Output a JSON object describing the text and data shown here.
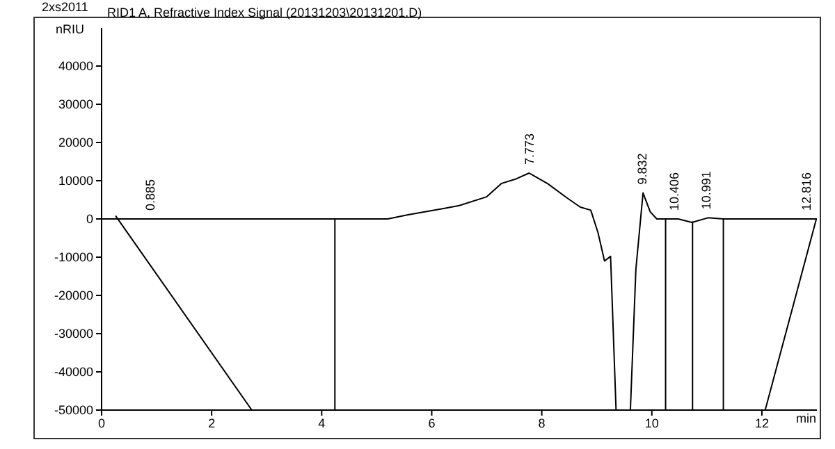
{
  "chart_data": {
    "type": "line",
    "title": "RID1 A, Refractive Index Signal (20131203\\20131201.D)",
    "xlabel": "min",
    "ylabel": "nRIU",
    "annotations": [
      "2xs2011",
      {
        "text": "0.885",
        "x": 0.885,
        "y": 0
      },
      {
        "text": "7.773",
        "x": 7.773,
        "y": 12000
      },
      {
        "text": "9.832",
        "x": 9.832,
        "y": 6800
      },
      {
        "text": "10.406",
        "x": 10.406,
        "y": 0
      },
      {
        "text": "10.991",
        "x": 10.991,
        "y": 300
      },
      {
        "text": "12.816",
        "x": 12.816,
        "y": 0
      }
    ],
    "series": [
      {
        "color": "#000000",
        "x": [
          0,
          5.2,
          5.57,
          6.25,
          6.5,
          7.0,
          7.27,
          7.52,
          7.77,
          8.11,
          8.45,
          8.7,
          8.89,
          9.02,
          9.14,
          9.25,
          9.35,
          9.61,
          9.71,
          9.84,
          9.97,
          10.09,
          10.48,
          10.73,
          11.02,
          11.3,
          13
        ],
        "values": [
          0,
          0,
          1100,
          2800,
          3500,
          5800,
          9300,
          10400,
          12000,
          9200,
          5600,
          3100,
          2300,
          -3500,
          -11000,
          -9800,
          -50000,
          -50000,
          -13200,
          6800,
          1900,
          0,
          0,
          -900,
          300,
          0,
          0
        ]
      },
      {
        "color": "#000000",
        "x": [
          0.26,
          2.73,
          3,
          4.24,
          4.24,
          5,
          10.25,
          10.25,
          10.5,
          10.74,
          10.74,
          11,
          11.3,
          11.3,
          11.6,
          12.06,
          12.99
        ],
        "values": [
          700,
          -50000,
          null,
          0,
          -50000,
          null,
          0,
          -50000,
          null,
          -800,
          -50000,
          null,
          0,
          -50000,
          null,
          -50000,
          0
        ]
      }
    ],
    "xlim": [
      0,
      13
    ],
    "xticks": [
      0,
      2,
      4,
      6,
      8,
      10,
      12
    ],
    "ylim": [
      -50000,
      50000
    ],
    "yticks": [
      -50000,
      -40000,
      -30000,
      -20000,
      -10000,
      0,
      10000,
      20000,
      30000,
      40000
    ],
    "grid": false,
    "marker": "none",
    "line_style": "solid"
  }
}
